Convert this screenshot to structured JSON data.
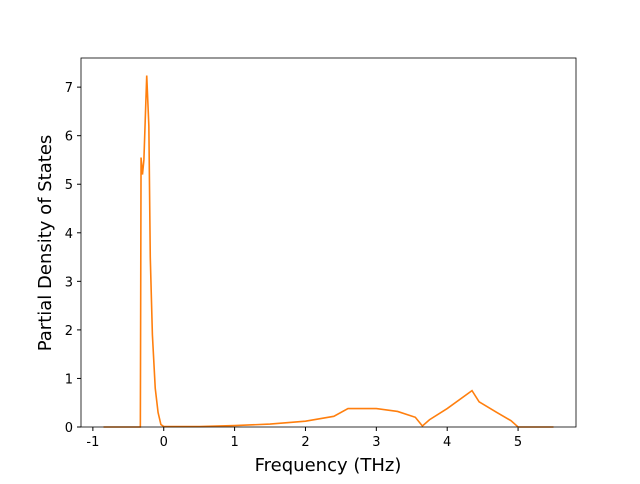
{
  "chart_data": {
    "type": "line",
    "xlabel": "Frequency (THz)",
    "ylabel": "Partial Density of States",
    "x": [
      -0.85,
      -0.33,
      -0.32,
      -0.3,
      -0.28,
      -0.24,
      -0.21,
      -0.19,
      -0.16,
      -0.12,
      -0.08,
      -0.04,
      0,
      0.5,
      1,
      1.5,
      2,
      2.4,
      2.6,
      3,
      3.3,
      3.55,
      3.65,
      3.75,
      4,
      4.35,
      4.45,
      4.7,
      4.9,
      5.0,
      5.5
    ],
    "values": [
      0,
      0,
      5.55,
      5.2,
      5.5,
      7.24,
      6.2,
      3.5,
      1.9,
      0.8,
      0.3,
      0.05,
      0.01,
      0.01,
      0.03,
      0.06,
      0.12,
      0.22,
      0.38,
      0.38,
      0.32,
      0.2,
      0.02,
      0.15,
      0.38,
      0.75,
      0.52,
      0.3,
      0.13,
      0,
      0
    ],
    "color": "#ff7f0e",
    "xlim": [
      -1.1675,
      5.8175
    ],
    "ylim": [
      0,
      7.6
    ],
    "xticks": [
      -1,
      0,
      1,
      2,
      3,
      4,
      5
    ],
    "yticks": [
      0,
      1,
      2,
      3,
      4,
      5,
      6,
      7
    ]
  }
}
